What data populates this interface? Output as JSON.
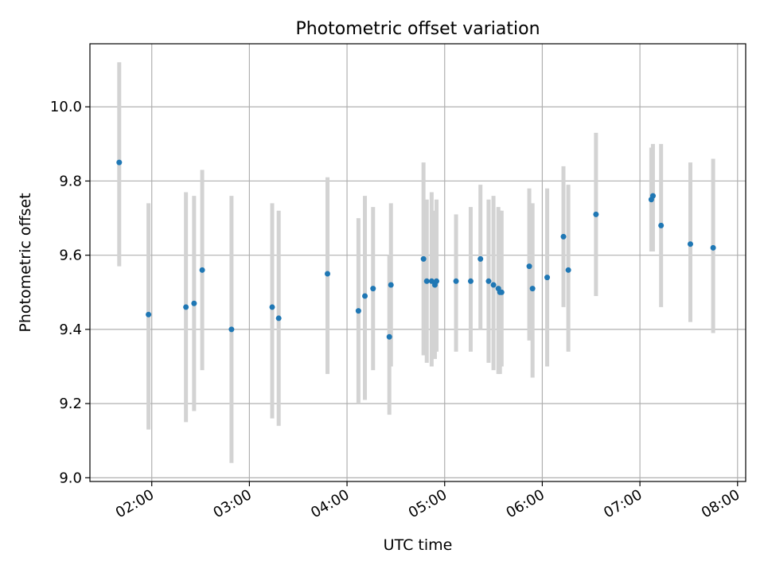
{
  "chart_data": {
    "type": "scatter",
    "title": "Photometric offset variation",
    "xlabel": "UTC time",
    "ylabel": "Photometric offset",
    "x_tick_labels": [
      "02:00",
      "03:00",
      "04:00",
      "05:00",
      "06:00",
      "07:00",
      "08:00"
    ],
    "x_tick_times": [
      "02:00",
      "03:00",
      "04:00",
      "05:00",
      "06:00",
      "07:00",
      "08:00"
    ],
    "y_tick_labels": [
      "9.0",
      "9.2",
      "9.4",
      "9.6",
      "9.8",
      "10.0"
    ],
    "y_tick_values": [
      9.0,
      9.2,
      9.4,
      9.6,
      9.8,
      10.0
    ],
    "xlim": [
      "01:22",
      "08:05"
    ],
    "ylim": [
      8.99,
      10.17
    ],
    "grid": true,
    "colors": {
      "point": "#1f77b4",
      "errorbar": "#d3d3d3",
      "grid": "#b0b0b0"
    },
    "points": [
      {
        "t": "01:40",
        "y": 9.85,
        "lo": 9.57,
        "hi": 10.12
      },
      {
        "t": "01:58",
        "y": 9.44,
        "lo": 9.13,
        "hi": 9.74
      },
      {
        "t": "02:21",
        "y": 9.46,
        "lo": 9.15,
        "hi": 9.77
      },
      {
        "t": "02:26",
        "y": 9.47,
        "lo": 9.18,
        "hi": 9.76
      },
      {
        "t": "02:31",
        "y": 9.56,
        "lo": 9.29,
        "hi": 9.83
      },
      {
        "t": "02:49",
        "y": 9.4,
        "lo": 9.04,
        "hi": 9.76
      },
      {
        "t": "03:14",
        "y": 9.46,
        "lo": 9.16,
        "hi": 9.74
      },
      {
        "t": "03:18",
        "y": 9.43,
        "lo": 9.14,
        "hi": 9.72
      },
      {
        "t": "03:48",
        "y": 9.55,
        "lo": 9.28,
        "hi": 9.81
      },
      {
        "t": "04:07",
        "y": 9.45,
        "lo": 9.2,
        "hi": 9.7
      },
      {
        "t": "04:11",
        "y": 9.49,
        "lo": 9.21,
        "hi": 9.76
      },
      {
        "t": "04:16",
        "y": 9.51,
        "lo": 9.29,
        "hi": 9.73
      },
      {
        "t": "04:26",
        "y": 9.38,
        "lo": 9.17,
        "hi": 9.6
      },
      {
        "t": "04:27",
        "y": 9.52,
        "lo": 9.3,
        "hi": 9.74
      },
      {
        "t": "04:47",
        "y": 9.59,
        "lo": 9.33,
        "hi": 9.85
      },
      {
        "t": "04:49",
        "y": 9.53,
        "lo": 9.31,
        "hi": 9.75
      },
      {
        "t": "04:52",
        "y": 9.53,
        "lo": 9.3,
        "hi": 9.77
      },
      {
        "t": "04:54",
        "y": 9.52,
        "lo": 9.32,
        "hi": 9.72
      },
      {
        "t": "04:55",
        "y": 9.53,
        "lo": 9.34,
        "hi": 9.75
      },
      {
        "t": "05:07",
        "y": 9.53,
        "lo": 9.34,
        "hi": 9.71
      },
      {
        "t": "05:16",
        "y": 9.53,
        "lo": 9.34,
        "hi": 9.73
      },
      {
        "t": "05:22",
        "y": 9.59,
        "lo": 9.4,
        "hi": 9.79
      },
      {
        "t": "05:27",
        "y": 9.53,
        "lo": 9.31,
        "hi": 9.75
      },
      {
        "t": "05:30",
        "y": 9.52,
        "lo": 9.29,
        "hi": 9.76
      },
      {
        "t": "05:33",
        "y": 9.51,
        "lo": 9.28,
        "hi": 9.73
      },
      {
        "t": "05:34",
        "y": 9.5,
        "lo": 9.28,
        "hi": 9.72
      },
      {
        "t": "05:35",
        "y": 9.5,
        "lo": 9.3,
        "hi": 9.72
      },
      {
        "t": "05:52",
        "y": 9.57,
        "lo": 9.37,
        "hi": 9.78
      },
      {
        "t": "05:54",
        "y": 9.51,
        "lo": 9.27,
        "hi": 9.74
      },
      {
        "t": "06:03",
        "y": 9.54,
        "lo": 9.3,
        "hi": 9.78
      },
      {
        "t": "06:13",
        "y": 9.65,
        "lo": 9.46,
        "hi": 9.84
      },
      {
        "t": "06:16",
        "y": 9.56,
        "lo": 9.34,
        "hi": 9.79
      },
      {
        "t": "06:33",
        "y": 9.71,
        "lo": 9.49,
        "hi": 9.93
      },
      {
        "t": "07:07",
        "y": 9.75,
        "lo": 9.61,
        "hi": 9.89
      },
      {
        "t": "07:08",
        "y": 9.76,
        "lo": 9.61,
        "hi": 9.9
      },
      {
        "t": "07:13",
        "y": 9.68,
        "lo": 9.46,
        "hi": 9.9
      },
      {
        "t": "07:31",
        "y": 9.63,
        "lo": 9.42,
        "hi": 9.85
      },
      {
        "t": "07:45",
        "y": 9.62,
        "lo": 9.39,
        "hi": 9.86
      }
    ]
  }
}
